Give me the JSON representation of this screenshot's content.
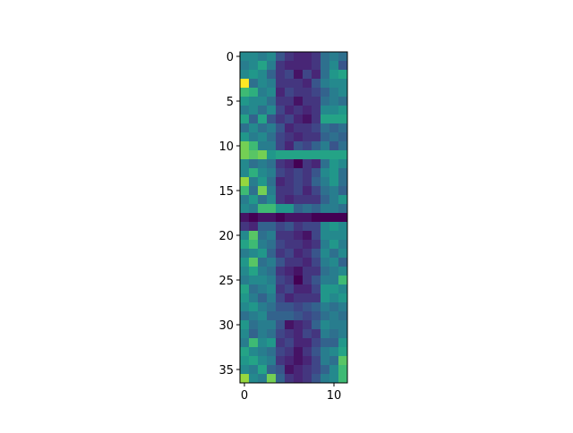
{
  "chart_data": {
    "type": "heatmap",
    "colormap": "viridis",
    "xlim": [
      -0.5,
      11.5
    ],
    "ylim": [
      36.5,
      -0.5
    ],
    "xticks": [
      0,
      10
    ],
    "yticks": [
      0,
      5,
      10,
      15,
      20,
      25,
      30,
      35
    ],
    "z": [
      [
        0.5,
        0.5,
        0.45,
        0.5,
        0.3,
        0.2,
        0.15,
        0.15,
        0.2,
        0.4,
        0.45,
        0.4
      ],
      [
        0.45,
        0.5,
        0.6,
        0.45,
        0.2,
        0.15,
        0.15,
        0.15,
        0.2,
        0.4,
        0.5,
        0.3
      ],
      [
        0.5,
        0.55,
        0.5,
        0.35,
        0.2,
        0.25,
        0.1,
        0.25,
        0.15,
        0.4,
        0.55,
        0.6
      ],
      [
        1.0,
        0.4,
        0.5,
        0.45,
        0.2,
        0.2,
        0.2,
        0.15,
        0.3,
        0.45,
        0.5,
        0.5
      ],
      [
        0.7,
        0.65,
        0.45,
        0.5,
        0.15,
        0.25,
        0.2,
        0.2,
        0.25,
        0.35,
        0.45,
        0.5
      ],
      [
        0.55,
        0.5,
        0.5,
        0.4,
        0.2,
        0.2,
        0.1,
        0.2,
        0.2,
        0.4,
        0.45,
        0.4
      ],
      [
        0.45,
        0.5,
        0.4,
        0.5,
        0.25,
        0.15,
        0.2,
        0.15,
        0.2,
        0.5,
        0.5,
        0.55
      ],
      [
        0.6,
        0.35,
        0.6,
        0.3,
        0.2,
        0.25,
        0.15,
        0.1,
        0.2,
        0.6,
        0.6,
        0.6
      ],
      [
        0.4,
        0.5,
        0.4,
        0.45,
        0.3,
        0.15,
        0.2,
        0.2,
        0.25,
        0.4,
        0.35,
        0.4
      ],
      [
        0.55,
        0.45,
        0.5,
        0.4,
        0.25,
        0.2,
        0.15,
        0.2,
        0.2,
        0.35,
        0.4,
        0.35
      ],
      [
        0.8,
        0.7,
        0.45,
        0.45,
        0.25,
        0.15,
        0.3,
        0.25,
        0.35,
        0.45,
        0.3,
        0.4
      ],
      [
        0.8,
        0.75,
        0.8,
        0.55,
        0.6,
        0.6,
        0.6,
        0.6,
        0.6,
        0.6,
        0.6,
        0.6
      ],
      [
        0.5,
        0.4,
        0.45,
        0.4,
        0.2,
        0.15,
        0.05,
        0.2,
        0.15,
        0.4,
        0.55,
        0.5
      ],
      [
        0.5,
        0.65,
        0.5,
        0.45,
        0.25,
        0.2,
        0.25,
        0.2,
        0.3,
        0.5,
        0.55,
        0.4
      ],
      [
        0.85,
        0.45,
        0.55,
        0.4,
        0.15,
        0.2,
        0.25,
        0.2,
        0.35,
        0.45,
        0.55,
        0.4
      ],
      [
        0.7,
        0.4,
        0.8,
        0.45,
        0.2,
        0.2,
        0.25,
        0.15,
        0.25,
        0.4,
        0.45,
        0.35
      ],
      [
        0.45,
        0.55,
        0.4,
        0.5,
        0.2,
        0.15,
        0.2,
        0.2,
        0.2,
        0.35,
        0.45,
        0.55
      ],
      [
        0.5,
        0.45,
        0.7,
        0.7,
        0.55,
        0.55,
        0.35,
        0.4,
        0.35,
        0.45,
        0.45,
        0.4
      ],
      [
        0.1,
        0.05,
        0.1,
        0.1,
        0.05,
        0.1,
        0.1,
        0.1,
        0.05,
        0.05,
        0.05,
        0.05
      ],
      [
        0.2,
        0.15,
        0.35,
        0.35,
        0.25,
        0.3,
        0.2,
        0.25,
        0.25,
        0.5,
        0.55,
        0.5
      ],
      [
        0.5,
        0.75,
        0.4,
        0.45,
        0.2,
        0.2,
        0.15,
        0.1,
        0.25,
        0.5,
        0.5,
        0.5
      ],
      [
        0.6,
        0.7,
        0.45,
        0.4,
        0.25,
        0.2,
        0.2,
        0.15,
        0.2,
        0.45,
        0.55,
        0.45
      ],
      [
        0.45,
        0.5,
        0.55,
        0.35,
        0.2,
        0.25,
        0.15,
        0.2,
        0.3,
        0.5,
        0.4,
        0.5
      ],
      [
        0.55,
        0.75,
        0.4,
        0.45,
        0.3,
        0.2,
        0.2,
        0.15,
        0.25,
        0.45,
        0.5,
        0.35
      ],
      [
        0.5,
        0.6,
        0.45,
        0.4,
        0.2,
        0.15,
        0.1,
        0.2,
        0.2,
        0.4,
        0.45,
        0.5
      ],
      [
        0.45,
        0.5,
        0.5,
        0.45,
        0.25,
        0.2,
        0.05,
        0.2,
        0.3,
        0.45,
        0.45,
        0.7
      ],
      [
        0.6,
        0.4,
        0.45,
        0.5,
        0.2,
        0.25,
        0.15,
        0.15,
        0.25,
        0.55,
        0.55,
        0.5
      ],
      [
        0.55,
        0.45,
        0.35,
        0.45,
        0.25,
        0.15,
        0.2,
        0.2,
        0.2,
        0.55,
        0.5,
        0.55
      ],
      [
        0.5,
        0.55,
        0.45,
        0.4,
        0.3,
        0.3,
        0.25,
        0.3,
        0.35,
        0.45,
        0.4,
        0.45
      ],
      [
        0.4,
        0.45,
        0.5,
        0.35,
        0.35,
        0.35,
        0.3,
        0.25,
        0.3,
        0.4,
        0.45,
        0.4
      ],
      [
        0.55,
        0.4,
        0.45,
        0.45,
        0.3,
        0.1,
        0.15,
        0.2,
        0.35,
        0.5,
        0.45,
        0.45
      ],
      [
        0.5,
        0.35,
        0.45,
        0.4,
        0.25,
        0.2,
        0.15,
        0.25,
        0.2,
        0.45,
        0.4,
        0.45
      ],
      [
        0.45,
        0.7,
        0.5,
        0.55,
        0.2,
        0.25,
        0.15,
        0.15,
        0.25,
        0.35,
        0.35,
        0.55
      ],
      [
        0.6,
        0.5,
        0.45,
        0.4,
        0.25,
        0.2,
        0.1,
        0.2,
        0.3,
        0.45,
        0.5,
        0.6
      ],
      [
        0.55,
        0.6,
        0.5,
        0.45,
        0.2,
        0.15,
        0.1,
        0.15,
        0.25,
        0.45,
        0.4,
        0.75
      ],
      [
        0.5,
        0.45,
        0.6,
        0.35,
        0.3,
        0.1,
        0.15,
        0.2,
        0.25,
        0.35,
        0.5,
        0.7
      ],
      [
        0.85,
        0.5,
        0.45,
        0.8,
        0.35,
        0.2,
        0.15,
        0.2,
        0.3,
        0.45,
        0.5,
        0.7
      ]
    ]
  }
}
